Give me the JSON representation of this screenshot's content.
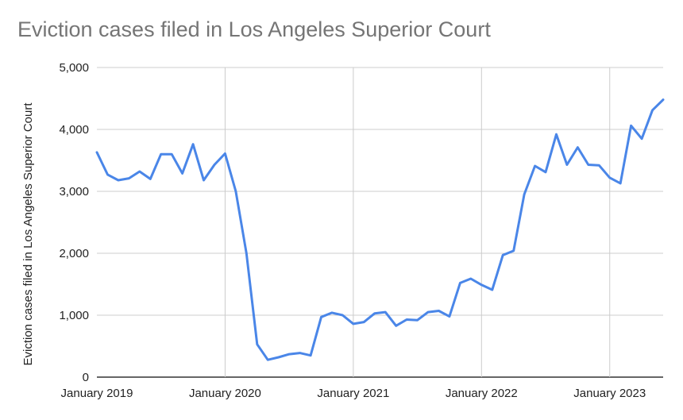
{
  "chart_data": {
    "type": "line",
    "title": "Eviction cases filed in Los Angeles Superior Court",
    "xlabel": "",
    "ylabel": "Eviction cases filed in Los Angeles Superior Court",
    "ylim": [
      0,
      5000
    ],
    "y_ticks": [
      "0",
      "1,000",
      "2,000",
      "3,000",
      "4,000",
      "5,000"
    ],
    "x_ticks": [
      "January 2019",
      "January 2020",
      "January 2021",
      "January 2022",
      "January 2023"
    ],
    "grid": true,
    "line_color": "#4a86e8",
    "series": [
      {
        "x": [
          "2019-01",
          "2019-02",
          "2019-03",
          "2019-04",
          "2019-05",
          "2019-06",
          "2019-07",
          "2019-08",
          "2019-09",
          "2019-10",
          "2019-11",
          "2019-12",
          "2020-01",
          "2020-02",
          "2020-03",
          "2020-04",
          "2020-05",
          "2020-06",
          "2020-07",
          "2020-08",
          "2020-09",
          "2020-10",
          "2020-11",
          "2020-12",
          "2021-01",
          "2021-02",
          "2021-03",
          "2021-04",
          "2021-05",
          "2021-06",
          "2021-07",
          "2021-08",
          "2021-09",
          "2021-10",
          "2021-11",
          "2021-12",
          "2022-01",
          "2022-02",
          "2022-03",
          "2022-04",
          "2022-05",
          "2022-06",
          "2022-07",
          "2022-08",
          "2022-09",
          "2022-10",
          "2022-11",
          "2022-12",
          "2023-01",
          "2023-02",
          "2023-03",
          "2023-04",
          "2023-05",
          "2023-06"
        ],
        "values": [
          3630,
          3270,
          3180,
          3210,
          3320,
          3200,
          3600,
          3600,
          3290,
          3760,
          3180,
          3430,
          3610,
          3000,
          2000,
          530,
          280,
          320,
          370,
          390,
          350,
          970,
          1040,
          1000,
          860,
          890,
          1030,
          1050,
          830,
          930,
          920,
          1050,
          1070,
          980,
          1520,
          1590,
          1490,
          1410,
          1970,
          2040,
          2950,
          3410,
          3310,
          3920,
          3430,
          3710,
          3430,
          3420,
          3220,
          3130,
          4060,
          3850,
          4310,
          4480
        ]
      }
    ]
  }
}
